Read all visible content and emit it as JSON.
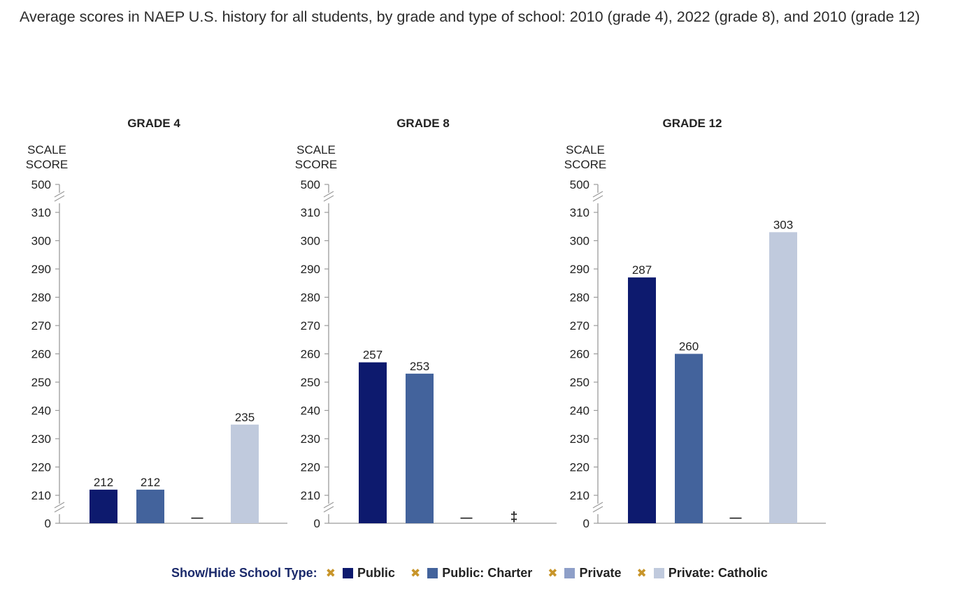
{
  "title": "Average scores in NAEP U.S. history for all students, by grade and type of school: 2010 (grade 4), 2022 (grade 8), and 2010 (grade 12)",
  "chart_data": [
    {
      "type": "bar",
      "title": "GRADE 4",
      "ylabel": [
        "SCALE",
        "SCORE"
      ],
      "yticks": [
        0,
        210,
        220,
        230,
        240,
        250,
        260,
        270,
        280,
        290,
        300,
        310,
        500
      ],
      "ylim": [
        205,
        315
      ],
      "axis_break": "between 0 and 210, and between 310 and 500",
      "categories": [
        "Public",
        "Public: Charter",
        "Private",
        "Private: Catholic"
      ],
      "values": [
        212,
        212,
        null,
        235
      ],
      "labels": [
        "212",
        "212",
        "",
        "235"
      ],
      "missing_markers": [
        null,
        null,
        "—",
        null
      ]
    },
    {
      "type": "bar",
      "title": "GRADE 8",
      "ylabel": [
        "SCALE",
        "SCORE"
      ],
      "yticks": [
        0,
        210,
        220,
        230,
        240,
        250,
        260,
        270,
        280,
        290,
        300,
        310,
        500
      ],
      "ylim": [
        205,
        315
      ],
      "axis_break": "between 0 and 210, and between 310 and 500",
      "categories": [
        "Public",
        "Public: Charter",
        "Private",
        "Private: Catholic"
      ],
      "values": [
        257,
        253,
        null,
        null
      ],
      "labels": [
        "257",
        "253",
        "",
        ""
      ],
      "missing_markers": [
        null,
        null,
        "—",
        "‡"
      ]
    },
    {
      "type": "bar",
      "title": "GRADE 12",
      "ylabel": [
        "SCALE",
        "SCORE"
      ],
      "yticks": [
        0,
        210,
        220,
        230,
        240,
        250,
        260,
        270,
        280,
        290,
        300,
        310,
        500
      ],
      "ylim": [
        205,
        315
      ],
      "axis_break": "between 0 and 210, and between 310 and 500",
      "categories": [
        "Public",
        "Public: Charter",
        "Private",
        "Private: Catholic"
      ],
      "values": [
        287,
        260,
        null,
        303
      ],
      "labels": [
        "287",
        "260",
        "",
        "303"
      ],
      "missing_markers": [
        null,
        null,
        "—",
        null
      ]
    }
  ],
  "colors": {
    "Public": "#0d1a6e",
    "Public: Charter": "#43639c",
    "Private": "#8e9fc8",
    "Private: Catholic": "#c0cadd",
    "axis": "#9a9a9a",
    "legend_x": "#c8952a"
  },
  "legend": {
    "title": "Show/Hide School Type:",
    "remove_glyph": "✖",
    "items": [
      {
        "label": "Public",
        "color": "#0d1a6e"
      },
      {
        "label": "Public: Charter",
        "color": "#43639c"
      },
      {
        "label": "Private",
        "color": "#8e9fc8"
      },
      {
        "label": "Private: Catholic",
        "color": "#c0cadd"
      }
    ]
  }
}
